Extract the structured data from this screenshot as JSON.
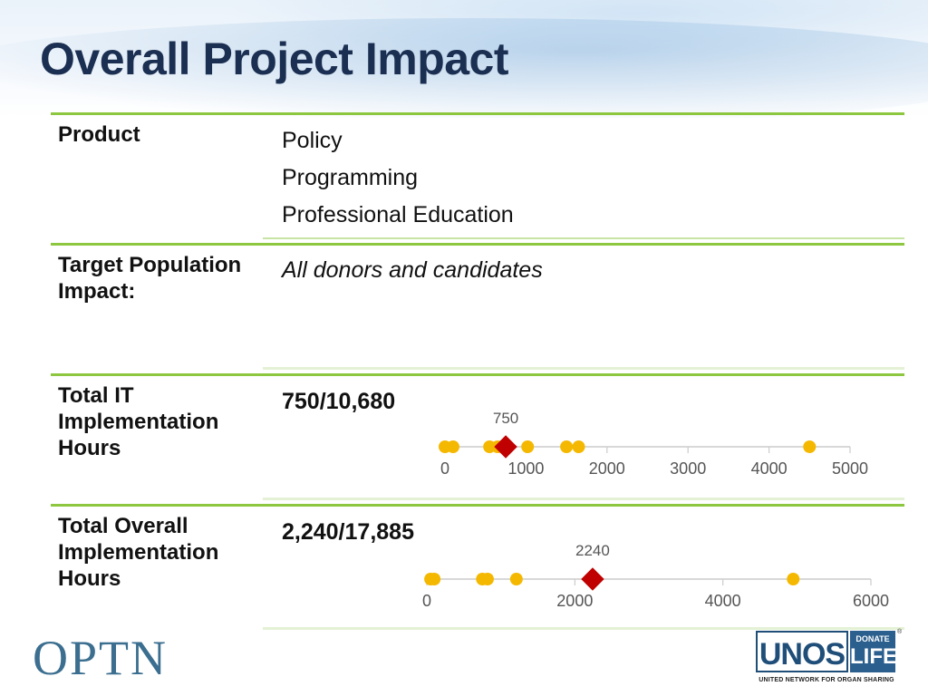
{
  "title": "Overall Project Impact",
  "rows": [
    {
      "label": "Product",
      "values": [
        "Policy",
        "Programming",
        "Professional Education"
      ]
    },
    {
      "label": "Target Population Impact:",
      "value": "All donors and candidates"
    },
    {
      "label": "Total IT Implementation Hours",
      "value": "750/10,680"
    },
    {
      "label": "Total Overall Implementation Hours",
      "value": "2,240/17,885"
    }
  ],
  "chart_data": [
    {
      "type": "scatter",
      "title": "",
      "xlim": [
        0,
        5000
      ],
      "ticks": [
        0,
        1000,
        2000,
        3000,
        4000,
        5000
      ],
      "points": [
        0,
        100,
        550,
        650,
        1020,
        1500,
        1650,
        4500
      ],
      "highlight": {
        "value": 750,
        "label": "750"
      },
      "colors": {
        "point": "#f5b800",
        "highlight": "#c00000",
        "axis": "#cccccc"
      }
    },
    {
      "type": "scatter",
      "title": "",
      "xlim": [
        0,
        6000
      ],
      "ticks": [
        0,
        2000,
        4000,
        6000
      ],
      "points": [
        50,
        100,
        750,
        820,
        1210,
        4950
      ],
      "highlight": {
        "value": 2240,
        "label": "2240"
      },
      "colors": {
        "point": "#f5b800",
        "highlight": "#c00000",
        "axis": "#cccccc"
      }
    }
  ],
  "footer": {
    "optn_logo": "OPTN",
    "unos_logo": "UNOS",
    "donate_top": "DONATE",
    "donate_bottom": "LIFE",
    "tagline": "UNITED NETWORK FOR ORGAN SHARING",
    "registered": "®"
  }
}
